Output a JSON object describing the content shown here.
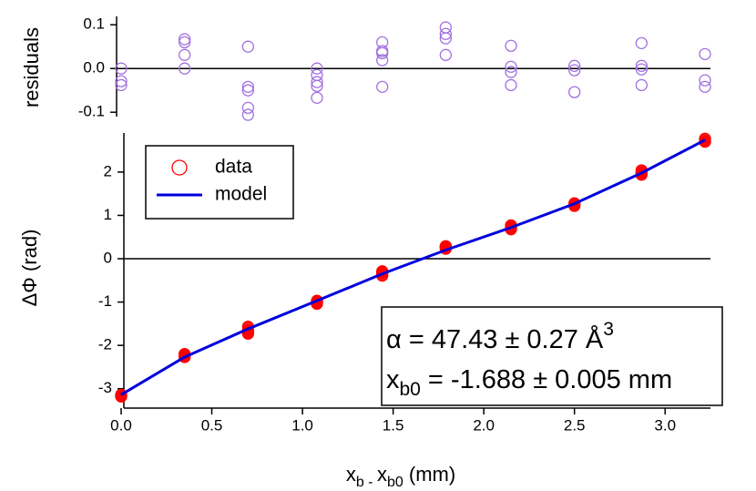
{
  "chart_data": [
    {
      "type": "scatter",
      "ylabel": "residuals",
      "color": "#a070e0",
      "x": [
        0,
        0,
        0,
        0.35,
        0.35,
        0.35,
        0.35,
        0.7,
        0.7,
        0.7,
        0.7,
        0.7,
        1.08,
        1.08,
        1.08,
        1.08,
        1.08,
        1.44,
        1.44,
        1.44,
        1.44,
        1.44,
        1.79,
        1.79,
        1.79,
        1.79,
        2.15,
        2.15,
        2.15,
        2.15,
        2.5,
        2.5,
        2.5,
        2.87,
        2.87,
        2.87,
        2.87,
        3.22,
        3.22,
        3.22
      ],
      "values": [
        0,
        -0.029,
        -0.038,
        0.067,
        0.06,
        0.031,
        0,
        0.05,
        -0.042,
        -0.05,
        -0.09,
        -0.106,
        0,
        -0.015,
        -0.031,
        -0.04,
        -0.067,
        0.06,
        0.04,
        0.035,
        0.019,
        -0.042,
        0.094,
        0.079,
        0.069,
        0.031,
        0.052,
        0.004,
        -0.008,
        -0.038,
        0.006,
        -0.004,
        -0.054,
        0.058,
        0.006,
        -0.002,
        -0.038,
        0.033,
        -0.027,
        -0.042
      ],
      "xlim": [
        0,
        3.24
      ],
      "ylim": [
        -0.11,
        0.115
      ],
      "yticks": [
        {
          "value": 0.1,
          "label": "0.1"
        },
        {
          "value": 0,
          "label": "0.0"
        },
        {
          "value": -0.1,
          "label": "-0.1"
        }
      ],
      "zero_line": true
    },
    {
      "type": "scatter+line",
      "ylabel": "ΔΦ (rad)",
      "xlabel": [
        "x",
        "b - ",
        "x",
        "b0",
        " (mm)"
      ],
      "legend": "upper left",
      "series": [
        {
          "name": "data",
          "type": "scatter",
          "color": "#ff0000",
          "x": [
            0,
            0,
            0,
            0.35,
            0.35,
            0.35,
            0.35,
            0.7,
            0.7,
            0.7,
            0.7,
            0.7,
            1.08,
            1.08,
            1.08,
            1.08,
            1.08,
            1.44,
            1.44,
            1.44,
            1.44,
            1.44,
            1.79,
            1.79,
            1.79,
            1.79,
            2.15,
            2.15,
            2.15,
            2.15,
            2.5,
            2.5,
            2.5,
            2.87,
            2.87,
            2.87,
            2.87,
            3.22,
            3.22,
            3.22
          ],
          "values": [
            -3.14,
            -3.17,
            -3.18,
            -2.2,
            -2.21,
            -2.24,
            -2.27,
            -1.57,
            -1.66,
            -1.67,
            -1.71,
            -1.73,
            -0.97,
            -0.99,
            -1.0,
            -1.01,
            -1.04,
            -0.29,
            -0.31,
            -0.32,
            -0.33,
            -0.39,
            0.29,
            0.28,
            0.27,
            0.23,
            0.77,
            0.72,
            0.71,
            0.68,
            1.28,
            1.27,
            1.22,
            2.04,
            1.99,
            1.98,
            1.94,
            2.77,
            2.71,
            2.7
          ]
        },
        {
          "name": "model",
          "type": "line",
          "color": "#0000dd",
          "x": [
            0,
            0.35,
            0.7,
            1.08,
            1.44,
            1.79,
            2.15,
            2.5,
            2.87,
            3.22
          ],
          "values": [
            -3.14,
            -2.27,
            -1.62,
            -0.97,
            -0.35,
            0.2,
            0.72,
            1.27,
            1.98,
            2.74
          ]
        }
      ],
      "xlim": [
        0,
        3.24
      ],
      "ylim": [
        -3.28,
        2.86
      ],
      "xticks": [
        {
          "value": 0,
          "label": "0.0"
        },
        0.5,
        {
          "value": 1,
          "label": "1.0"
        },
        1.5,
        {
          "value": 2,
          "label": "2.0"
        },
        2.5,
        {
          "value": 3,
          "label": "3.0"
        }
      ],
      "yticks": [
        -3,
        -2,
        -1,
        0,
        1,
        2
      ],
      "zero_line": true,
      "annotations": [
        [
          "α = 47.43 ± 0.27 Å",
          "3"
        ],
        [
          "x",
          "b0",
          " = -1.688 ± 0.005 mm"
        ]
      ]
    }
  ]
}
